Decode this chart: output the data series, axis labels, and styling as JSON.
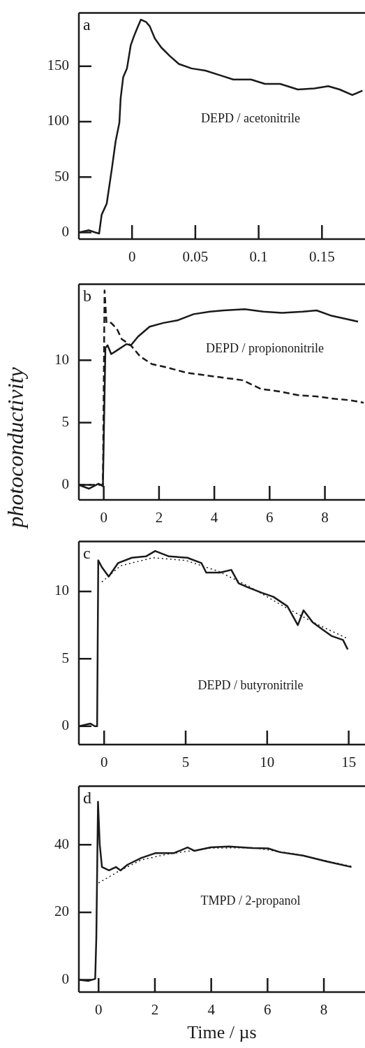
{
  "chart_data": [
    {
      "type": "line",
      "annotations": [
        "a",
        "DEPD / acetonitrile"
      ],
      "xlim": [
        -0.042,
        0.184
      ],
      "xticks": [
        0,
        0.05,
        0.1,
        0.15
      ],
      "ylim": [
        -6,
        198
      ],
      "yticks": [
        0,
        50,
        100,
        150
      ],
      "series": [
        {
          "color": "#1a1a1a",
          "line_style": "solid",
          "x": [
            -0.042,
            -0.034,
            -0.029,
            -0.026,
            -0.024,
            -0.02,
            -0.016,
            -0.013,
            -0.01,
            -0.009,
            -0.007,
            -0.004,
            -0.001,
            0.0015,
            0.004,
            0.007,
            0.011,
            0.014,
            0.018,
            0.023,
            0.03,
            0.037,
            0.047,
            0.058,
            0.069,
            0.08,
            0.094,
            0.105,
            0.117,
            0.131,
            0.144,
            0.155,
            0.164,
            0.174,
            0.182
          ],
          "values": [
            0,
            2,
            0,
            -1,
            16,
            26,
            57,
            82,
            99,
            121,
            140,
            148,
            169,
            177,
            184,
            192,
            190,
            186,
            175,
            167,
            159,
            152,
            148,
            146,
            142,
            138,
            138,
            134,
            134,
            129,
            130,
            132,
            129,
            124,
            128
          ]
        }
      ]
    },
    {
      "type": "line",
      "annotations": [
        "b",
        "DEPD / propiononitrile"
      ],
      "ylabel": "photoconductivity",
      "xlim": [
        -0.9,
        9.45
      ],
      "xticks": [
        0,
        2,
        4,
        6,
        8
      ],
      "ylim": [
        -1.2,
        16.1
      ],
      "yticks": [
        0,
        5,
        10
      ],
      "series": [
        {
          "color": "#1a1a1a",
          "line_style": "solid",
          "x": [
            -0.9,
            -0.53,
            -0.19,
            -0.03,
            0.06,
            0.14,
            0.27,
            0.48,
            0.82,
            0.98,
            1.24,
            1.66,
            2.16,
            2.66,
            3.25,
            3.84,
            4.34,
            5.1,
            5.77,
            6.45,
            7.2,
            7.7,
            8.2,
            8.8,
            9.2
          ],
          "values": [
            0,
            -0.3,
            0.1,
            -0.1,
            11,
            11.2,
            10.5,
            10.8,
            11.3,
            11.2,
            11.9,
            12.7,
            13,
            13.2,
            13.7,
            13.9,
            14,
            14.1,
            13.9,
            13.8,
            13.9,
            14,
            13.6,
            13.3,
            13.1
          ]
        },
        {
          "color": "#1a1a1a",
          "line_style": "dashed",
          "x": [
            -0.9,
            -0.03,
            0.03,
            0.1,
            0.27,
            0.48,
            0.65,
            0.98,
            1.32,
            1.74,
            2.33,
            3,
            3.67,
            4.34,
            5.02,
            5.69,
            6.36,
            7.03,
            7.7,
            8.38,
            8.9,
            9.4
          ],
          "values": [
            0,
            0,
            15.6,
            13,
            13,
            12.5,
            11.7,
            11.2,
            10.3,
            9.7,
            9.4,
            9,
            8.8,
            8.6,
            8.4,
            7.7,
            7.5,
            7.2,
            7.1,
            6.9,
            6.8,
            6.6
          ]
        }
      ]
    },
    {
      "type": "line",
      "annotations": [
        "c",
        "DEPD / butyronitrile"
      ],
      "xlim": [
        -1.55,
        16
      ],
      "xticks": [
        0,
        5,
        10,
        15
      ],
      "ylim": [
        -1.36,
        13.7
      ],
      "yticks": [
        0,
        5,
        10
      ],
      "series": [
        {
          "color": "#1a1a1a",
          "line_style": "solid",
          "x": [
            -1.55,
            -0.85,
            -0.57,
            -0.43,
            -0.36,
            -0.14,
            0.28,
            0.85,
            1.7,
            2.56,
            3.13,
            3.98,
            5.1,
            5.97,
            6.26,
            7.1,
            7.8,
            8.25,
            8.82,
            9.67,
            10.38,
            11.24,
            11.88,
            12.23,
            12.8,
            13.37,
            13.94,
            14.65,
            14.94
          ],
          "values": [
            0,
            0.2,
            0,
            0,
            12.3,
            11.8,
            11.1,
            12.1,
            12.5,
            12.6,
            13,
            12.6,
            12.5,
            12.1,
            11.4,
            11.4,
            11.6,
            10.6,
            10.3,
            9.9,
            9.6,
            8.9,
            7.5,
            8.6,
            7.7,
            7.2,
            6.7,
            6.4,
            5.7
          ]
        },
        {
          "color": "#1a1a1a",
          "line_style": "dotted",
          "x": [
            -0.14,
            1,
            3,
            5,
            7,
            9,
            11,
            13,
            14.94
          ],
          "values": [
            10.7,
            11.9,
            12.5,
            12.3,
            11.5,
            10.3,
            8.9,
            7.6,
            6.5
          ]
        }
      ]
    },
    {
      "type": "line",
      "annotations": [
        "d",
        "TMPD / 2-propanol"
      ],
      "xlabel": "Time / µs",
      "xlim": [
        -0.7,
        9.46
      ],
      "xticks": [
        0,
        2,
        4,
        6,
        8
      ],
      "ylim": [
        -3.6,
        57.3
      ],
      "yticks": [
        0,
        20,
        40
      ],
      "series": [
        {
          "color": "#1a1a1a",
          "line_style": "solid",
          "x": [
            -0.7,
            -0.37,
            -0.12,
            -0.08,
            -0.02,
            0.04,
            0.12,
            0.37,
            0.62,
            0.78,
            1.03,
            1.52,
            2.01,
            2.67,
            3.16,
            3.4,
            3.98,
            4.63,
            5.46,
            6.02,
            6.44,
            7.26,
            8.08,
            8.98
          ],
          "values": [
            0,
            -0.3,
            0.3,
            12.5,
            52.7,
            40.2,
            33.4,
            32.4,
            33.4,
            32.4,
            34.1,
            36.1,
            37.5,
            37.5,
            39.2,
            38.2,
            39.2,
            39.5,
            39,
            38.9,
            37.8,
            36.8,
            35.1,
            33.4
          ]
        },
        {
          "color": "#1a1a1a",
          "line_style": "dotted",
          "x": [
            0,
            0.7,
            1.52,
            2.5,
            4,
            5.5,
            7,
            8.98
          ],
          "values": [
            28.7,
            32.1,
            35.5,
            37.3,
            39,
            39.1,
            37.2,
            33.6
          ]
        }
      ]
    }
  ]
}
